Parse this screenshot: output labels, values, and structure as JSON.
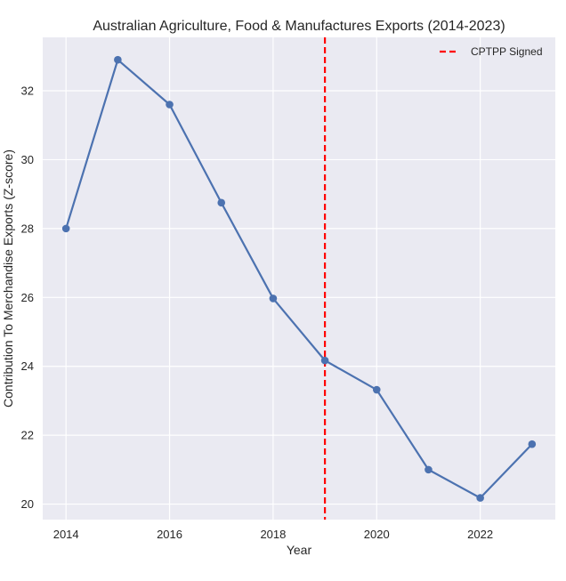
{
  "chart_data": {
    "type": "line",
    "title": "Australian Agriculture, Food & Manufactures Exports (2014-2023)",
    "xlabel": "Year",
    "ylabel": "Contribution To Merchandise Exports (Z-score)",
    "x": [
      2014,
      2015,
      2016,
      2017,
      2018,
      2019,
      2020,
      2021,
      2022,
      2023
    ],
    "series": [
      {
        "values": [
          28.0,
          32.9,
          31.6,
          28.75,
          25.97,
          24.17,
          23.32,
          21.0,
          20.18,
          21.74
        ],
        "color": "#4c72b0"
      }
    ],
    "xticks": [
      2014,
      2016,
      2018,
      2020,
      2022
    ],
    "yticks": [
      20,
      22,
      24,
      26,
      28,
      30,
      32
    ],
    "xlim": [
      2013.55,
      2023.45
    ],
    "ylim": [
      19.55,
      33.55
    ],
    "grid": true,
    "vline": {
      "x": 2019,
      "label": "CPTPP Signed",
      "color": "#ff0000",
      "style": "dashed"
    },
    "legend": {
      "position": "top-right"
    },
    "background": "#eaeaf2"
  }
}
